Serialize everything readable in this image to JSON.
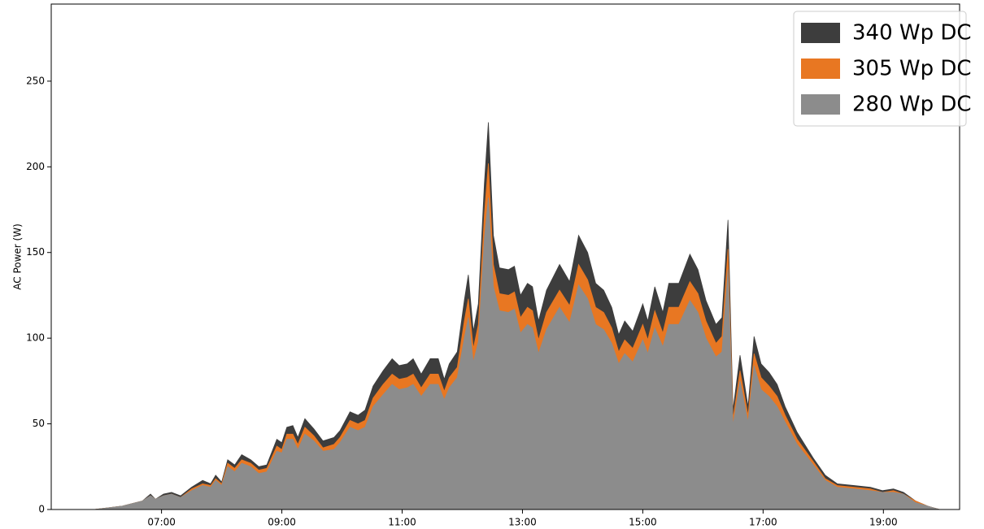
{
  "chart_data": {
    "type": "area",
    "overlap": true,
    "y_label": "AC Power (W)",
    "x": [
      "05:53",
      "06:21",
      "06:41",
      "06:49",
      "06:54",
      "07:02",
      "07:10",
      "07:19",
      "07:30",
      "07:41",
      "07:49",
      "07:54",
      "08:00",
      "08:06",
      "08:13",
      "08:20",
      "08:29",
      "08:37",
      "08:45",
      "08:55",
      "09:00",
      "09:05",
      "09:11",
      "09:16",
      "09:23",
      "09:32",
      "09:41",
      "09:52",
      "09:58",
      "10:08",
      "10:16",
      "10:23",
      "10:31",
      "10:41",
      "10:50",
      "10:57",
      "11:05",
      "11:11",
      "11:19",
      "11:28",
      "11:36",
      "11:42",
      "11:47",
      "11:55",
      "12:02",
      "12:06",
      "12:11",
      "12:16",
      "12:22",
      "12:26",
      "12:31",
      "12:37",
      "12:46",
      "12:52",
      "12:58",
      "13:05",
      "13:10",
      "13:16",
      "13:24",
      "13:37",
      "13:47",
      "13:56",
      "14:05",
      "14:13",
      "14:21",
      "14:29",
      "14:36",
      "14:42",
      "14:50",
      "15:00",
      "15:05",
      "15:12",
      "15:20",
      "15:26",
      "15:36",
      "15:47",
      "15:55",
      "16:03",
      "16:13",
      "16:19",
      "16:25",
      "16:30",
      "16:37",
      "16:45",
      "16:51",
      "16:58",
      "17:06",
      "17:14",
      "17:22",
      "17:34",
      "17:50",
      "18:02",
      "18:14",
      "18:31",
      "18:47",
      "18:59",
      "19:10",
      "19:20",
      "19:32",
      "19:44",
      "19:56"
    ],
    "series": [
      {
        "name": "340 Wp DC",
        "color": "#3d3d3d",
        "values": [
          0,
          2,
          5,
          9,
          6,
          9,
          10,
          8,
          13,
          17,
          15,
          20,
          16,
          29,
          26,
          32,
          29,
          25,
          26,
          41,
          39,
          48,
          49,
          42,
          53,
          47,
          40,
          42,
          46,
          57,
          55,
          58,
          72,
          81,
          88,
          84,
          85,
          88,
          79,
          88,
          88,
          76,
          85,
          92,
          122,
          137,
          104,
          120,
          190,
          226,
          160,
          141,
          140,
          142,
          125,
          132,
          130,
          110,
          128,
          143,
          133,
          160,
          150,
          132,
          128,
          118,
          102,
          110,
          104,
          120,
          110,
          130,
          115,
          132,
          132,
          149,
          140,
          122,
          108,
          112,
          169,
          58,
          90,
          60,
          101,
          85,
          80,
          73,
          60,
          45,
          30,
          20,
          15,
          14,
          13,
          11,
          12,
          10,
          5,
          2,
          0
        ]
      },
      {
        "name": "305 Wp DC",
        "color": "#e87722",
        "values": [
          0,
          2,
          5,
          8,
          6,
          8,
          9,
          7,
          12,
          15,
          14,
          18,
          15,
          27,
          24,
          29,
          27,
          23,
          24,
          37,
          35,
          44,
          44,
          38,
          48,
          43,
          36,
          38,
          42,
          52,
          50,
          52,
          65,
          73,
          79,
          76,
          77,
          79,
          71,
          79,
          79,
          69,
          77,
          83,
          110,
          123,
          94,
          108,
          172,
          202,
          143,
          126,
          125,
          127,
          112,
          118,
          116,
          99,
          115,
          128,
          119,
          143,
          134,
          118,
          115,
          106,
          92,
          99,
          94,
          108,
          99,
          116,
          103,
          118,
          118,
          133,
          126,
          110,
          97,
          101,
          152,
          53,
          81,
          55,
          91,
          77,
          72,
          66,
          55,
          41,
          28,
          18,
          14,
          13,
          12,
          10,
          11,
          9,
          5,
          2,
          0
        ]
      },
      {
        "name": "280 Wp DC",
        "color": "#8c8c8c",
        "values": [
          0,
          2,
          5,
          8,
          6,
          8,
          9,
          7,
          11,
          14,
          13,
          17,
          14,
          25,
          22,
          27,
          25,
          21,
          22,
          34,
          33,
          41,
          41,
          35,
          44,
          40,
          34,
          35,
          39,
          48,
          46,
          48,
          60,
          67,
          73,
          70,
          71,
          73,
          66,
          73,
          73,
          64,
          71,
          77,
          100,
          112,
          86,
          98,
          158,
          182,
          130,
          116,
          115,
          117,
          103,
          108,
          106,
          91,
          105,
          118,
          109,
          131,
          123,
          108,
          105,
          97,
          85,
          91,
          86,
          99,
          91,
          106,
          95,
          108,
          108,
          122,
          115,
          100,
          89,
          92,
          140,
          49,
          75,
          51,
          84,
          70,
          66,
          60,
          51,
          38,
          26,
          17,
          13,
          12,
          11,
          10,
          10,
          9,
          4,
          2,
          0
        ]
      }
    ],
    "xlim": [
      "05:10",
      "20:16"
    ],
    "xticks": [
      "07:00",
      "09:00",
      "11:00",
      "13:00",
      "15:00",
      "17:00",
      "19:00"
    ],
    "ylim": [
      0,
      295
    ],
    "yticks": [
      0,
      50,
      100,
      150,
      200,
      250
    ],
    "grid": false,
    "legend": "upper right"
  }
}
